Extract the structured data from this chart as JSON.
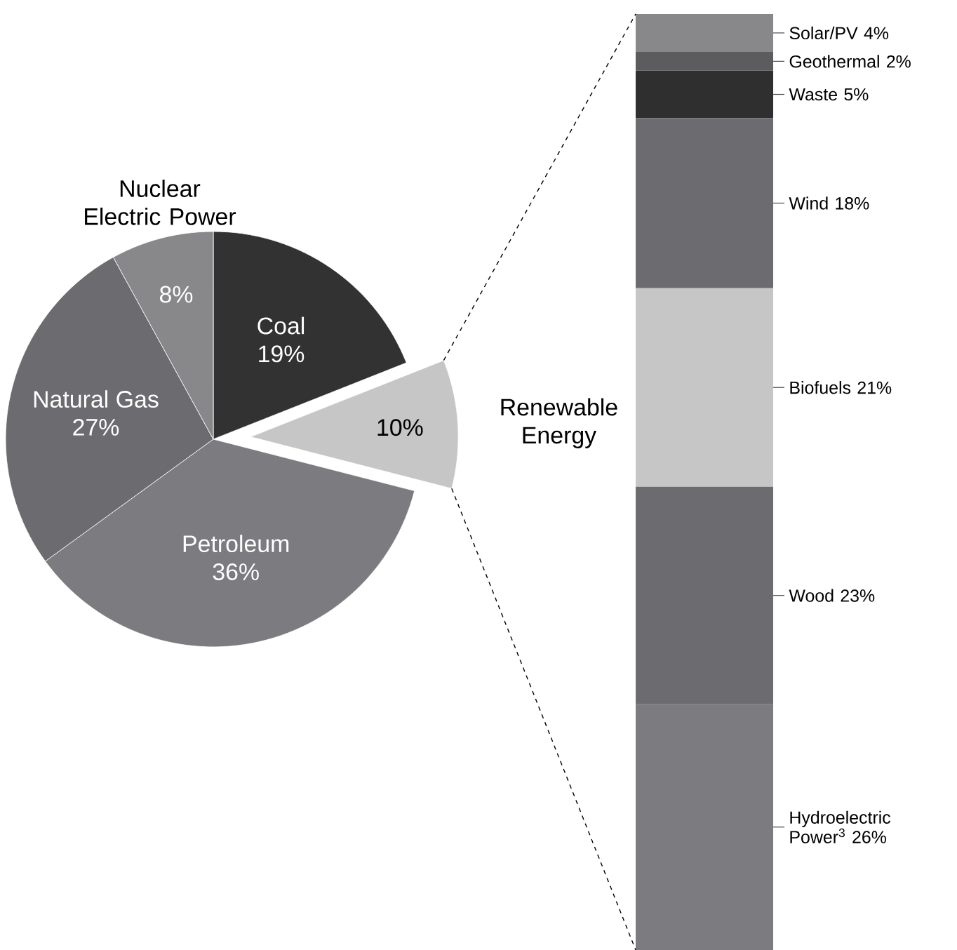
{
  "chart_data": [
    {
      "type": "pie",
      "categories": [
        "Coal",
        "Renewable Energy",
        "Petroleum",
        "Natural Gas",
        "Nuclear Electric Power"
      ],
      "values": [
        19,
        10,
        36,
        27,
        8
      ],
      "value_labels": [
        "19%",
        "10%",
        "36%",
        "27%",
        "8%"
      ],
      "colors": [
        "#333233",
        "#c6c6c7",
        "#7c7c80",
        "#6c6c70",
        "#88888b"
      ]
    },
    {
      "type": "bar",
      "stacked": true,
      "categories": [
        null
      ],
      "series": [
        {
          "color": "#7c7c80",
          "values": [
            26
          ],
          "value_labels": [
            "Hydroelectric Power$^{3}$ 26%"
          ]
        },
        {
          "color": "#6c6c70",
          "values": [
            23
          ],
          "value_labels": [
            "Wood 23%"
          ]
        },
        {
          "color": "#c6c6c7",
          "values": [
            21
          ],
          "value_labels": [
            "Biofuels 21%"
          ]
        },
        {
          "color": "#6c6c70",
          "values": [
            18
          ],
          "value_labels": [
            "Wind 18%"
          ]
        },
        {
          "color": "#302f30",
          "values": [
            5
          ],
          "value_labels": [
            "Waste 5%"
          ]
        },
        {
          "color": "#5c5c5f",
          "values": [
            2
          ],
          "value_labels": [
            "Geothermal 2%"
          ]
        },
        {
          "color": "#88888b",
          "values": [
            4
          ],
          "value_labels": [
            "Solar/PV 4%"
          ]
        }
      ]
    }
  ]
}
